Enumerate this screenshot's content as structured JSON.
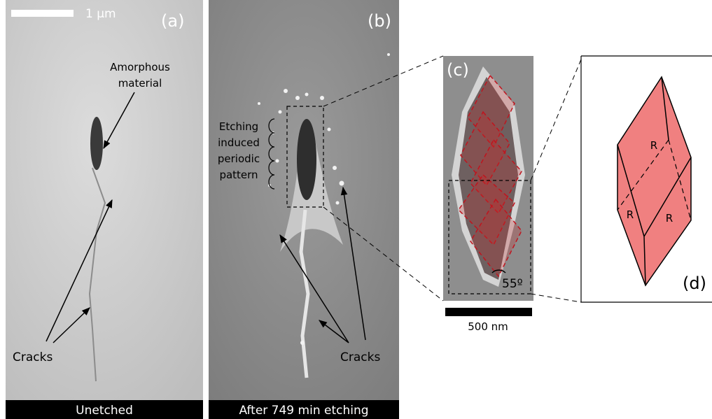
{
  "panels": {
    "a": {
      "label": "(a)",
      "scale_bar": "1 μm",
      "annotations": {
        "amorphous": [
          "Amorphous",
          "material"
        ],
        "cracks": "Cracks"
      },
      "caption": "Unetched"
    },
    "b": {
      "label": "(b)",
      "annotations": {
        "pattern": [
          "Etching",
          "induced",
          "periodic",
          "pattern"
        ],
        "cracks": "Cracks"
      },
      "caption": "After 749 min etching"
    },
    "c": {
      "label": "(c)",
      "angle": "55º",
      "scale_bar": "500 nm"
    },
    "d": {
      "label": "(d)",
      "faces": [
        "R",
        "R",
        "R"
      ]
    }
  }
}
